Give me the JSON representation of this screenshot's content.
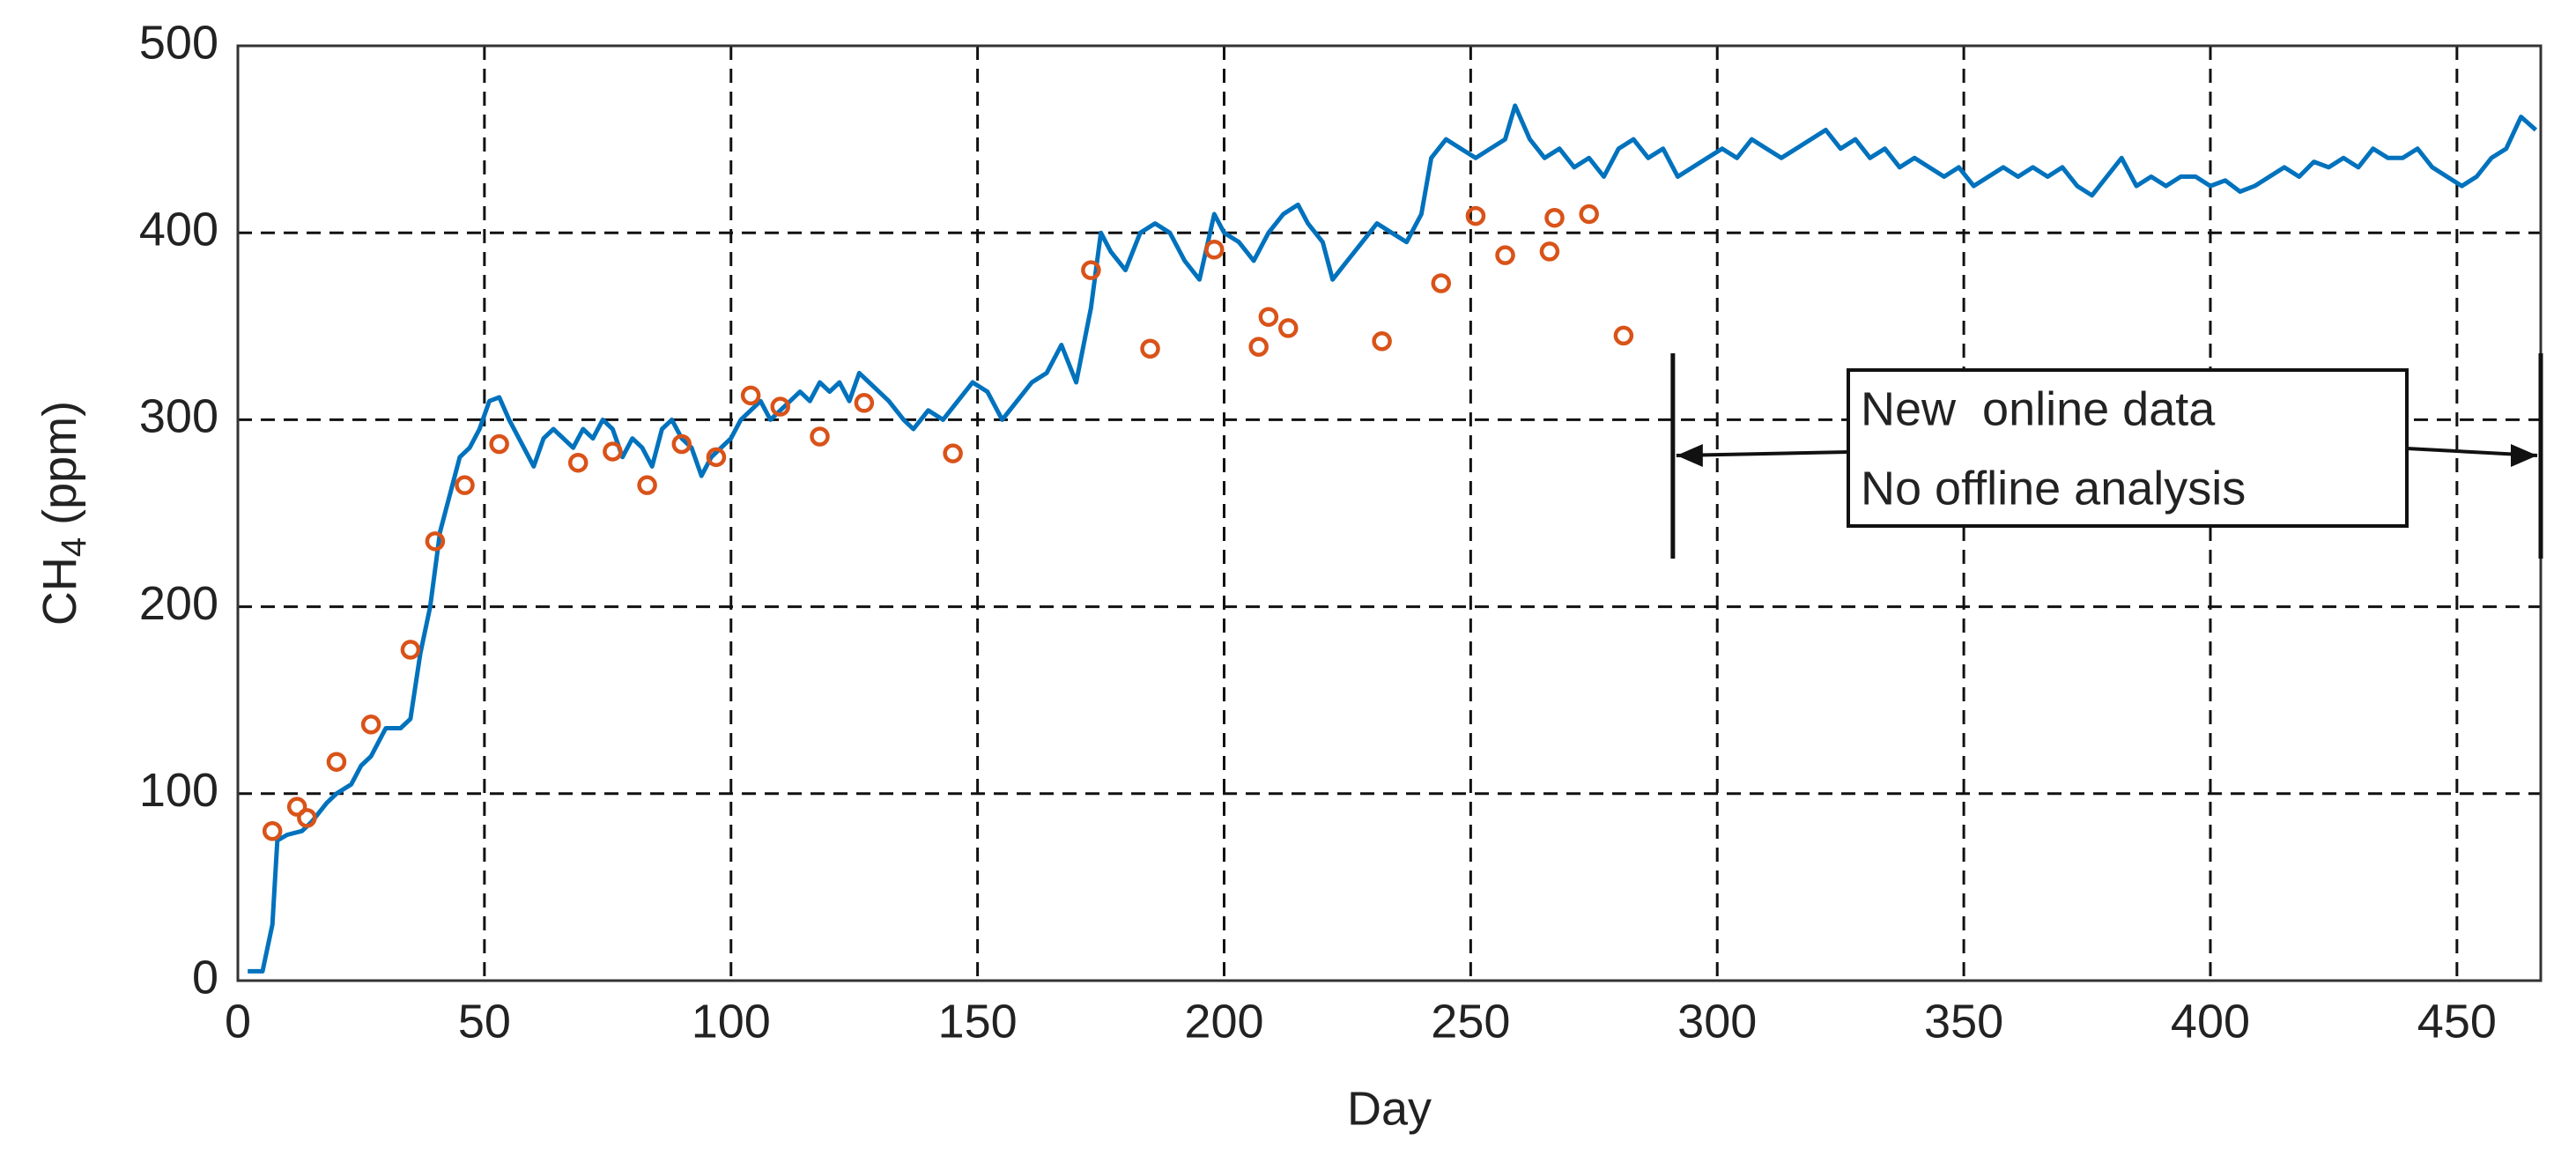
{
  "chart_data": {
    "type": "line",
    "xlabel": "Day",
    "ylabel": [
      "CH",
      "4",
      "(ppm)"
    ],
    "xlim": [
      0,
      467
    ],
    "xticks": [
      0,
      50,
      100,
      150,
      200,
      250,
      300,
      350,
      400,
      450
    ],
    "ylim": [
      0,
      500
    ],
    "yticks": [
      0,
      100,
      200,
      300,
      400,
      500
    ],
    "grid": true,
    "series": [
      {
        "mode": "line",
        "color": "#0072bd",
        "x": [
          2,
          5,
          7,
          8,
          10,
          13,
          15,
          18,
          20,
          23,
          25,
          27,
          30,
          33,
          35,
          37,
          39,
          41,
          43,
          45,
          47,
          49,
          51,
          53,
          55,
          58,
          60,
          62,
          64,
          66,
          68,
          70,
          72,
          74,
          76,
          78,
          80,
          82,
          84,
          86,
          88,
          90,
          92,
          94,
          96,
          98,
          100,
          102,
          104,
          106,
          108,
          110,
          112,
          114,
          116,
          118,
          120,
          122,
          124,
          126,
          128,
          130,
          132,
          135,
          137,
          140,
          143,
          146,
          149,
          152,
          155,
          158,
          161,
          164,
          167,
          170,
          173,
          175,
          177,
          180,
          183,
          186,
          189,
          192,
          195,
          198,
          200,
          203,
          206,
          209,
          212,
          215,
          217,
          220,
          222,
          225,
          228,
          231,
          234,
          237,
          240,
          242,
          245,
          248,
          251,
          254,
          257,
          259,
          262,
          265,
          268,
          271,
          274,
          277,
          280,
          283,
          286,
          289,
          292,
          295,
          298,
          301,
          304,
          307,
          310,
          313,
          316,
          319,
          322,
          325,
          328,
          331,
          334,
          337,
          340,
          343,
          346,
          349,
          352,
          355,
          358,
          361,
          364,
          367,
          370,
          373,
          376,
          379,
          382,
          385,
          388,
          391,
          394,
          397,
          400,
          403,
          406,
          409,
          412,
          415,
          418,
          421,
          424,
          427,
          430,
          433,
          436,
          439,
          442,
          445,
          448,
          451,
          454,
          457,
          460,
          463,
          466
        ],
        "values": [
          5,
          5,
          30,
          75,
          78,
          80,
          85,
          95,
          100,
          105,
          115,
          120,
          135,
          135,
          140,
          175,
          200,
          240,
          260,
          280,
          285,
          295,
          310,
          312,
          300,
          285,
          275,
          290,
          295,
          290,
          285,
          295,
          290,
          300,
          295,
          280,
          290,
          285,
          275,
          295,
          300,
          290,
          285,
          270,
          280,
          285,
          290,
          300,
          305,
          310,
          300,
          305,
          310,
          315,
          310,
          320,
          315,
          320,
          310,
          325,
          320,
          315,
          310,
          300,
          295,
          305,
          300,
          310,
          320,
          315,
          300,
          310,
          320,
          325,
          340,
          320,
          360,
          400,
          390,
          380,
          400,
          405,
          400,
          385,
          375,
          410,
          400,
          395,
          385,
          400,
          410,
          415,
          405,
          395,
          375,
          385,
          395,
          405,
          400,
          395,
          410,
          440,
          450,
          445,
          440,
          445,
          450,
          468,
          450,
          440,
          445,
          435,
          440,
          430,
          445,
          450,
          440,
          445,
          430,
          435,
          440,
          445,
          440,
          450,
          445,
          440,
          445,
          450,
          455,
          445,
          450,
          440,
          445,
          435,
          440,
          435,
          430,
          435,
          425,
          430,
          435,
          430,
          435,
          430,
          435,
          425,
          420,
          430,
          440,
          425,
          430,
          425,
          430,
          430,
          425,
          428,
          422,
          425,
          430,
          435,
          430,
          438,
          435,
          440,
          435,
          445,
          440,
          440,
          445,
          435,
          430,
          425,
          430,
          440,
          445,
          462,
          455
        ]
      },
      {
        "mode": "markers",
        "color": "#d95319",
        "x": [
          7,
          12,
          14,
          20,
          27,
          35,
          40,
          46,
          53,
          69,
          76,
          83,
          90,
          97,
          104,
          110,
          118,
          127,
          145,
          173,
          185,
          198,
          207,
          209,
          213,
          232,
          244,
          251,
          257,
          266,
          267,
          274,
          281
        ],
        "values": [
          80,
          93,
          87,
          117,
          137,
          177,
          235,
          265,
          287,
          277,
          283,
          265,
          287,
          280,
          313,
          307,
          291,
          309,
          282,
          380,
          338,
          391,
          339,
          355,
          349,
          342,
          373,
          409,
          388,
          390,
          408,
          410,
          345
        ]
      }
    ],
    "annotation": {
      "lines": [
        "New  online data",
        "No offline analysis"
      ],
      "x_range": [
        291,
        467
      ]
    }
  }
}
